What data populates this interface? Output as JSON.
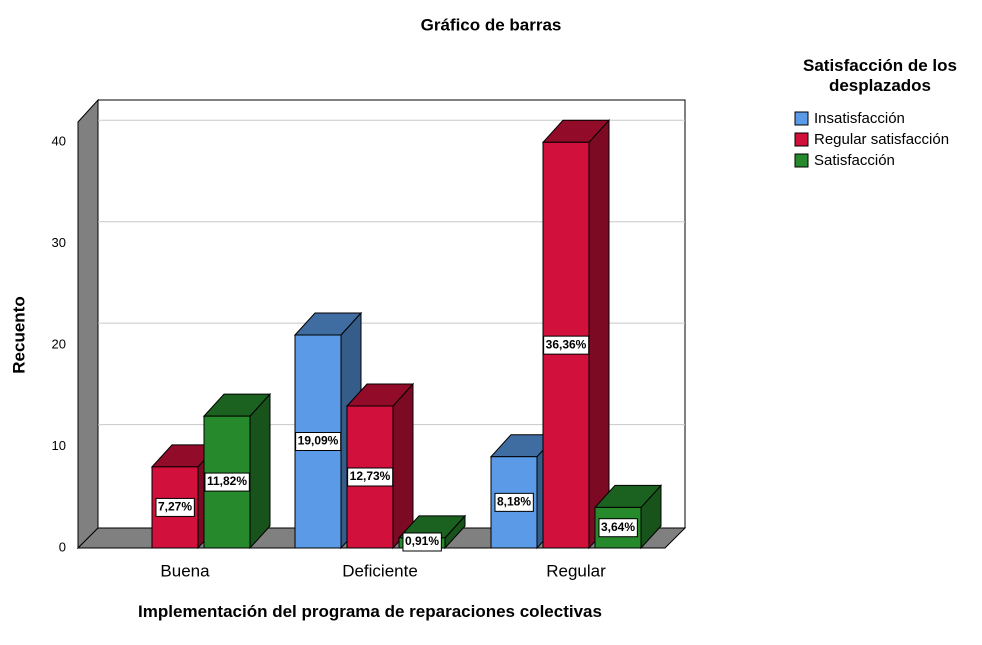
{
  "chart_data": {
    "type": "bar",
    "title": "Gráfico de barras",
    "x_label": "Implementación del programa de reparaciones colectivas",
    "y_label": "Recuento",
    "legend_title": "Satisfacción de los desplazados",
    "categories": [
      "Buena",
      "Deficiente",
      "Regular"
    ],
    "series": [
      {
        "name": "Insatisfacción",
        "color": "#5a9ae6",
        "values": [
          null,
          21,
          9
        ],
        "value_labels": [
          null,
          "19,09%",
          "8,18%"
        ]
      },
      {
        "name": "Regular satisfacción",
        "color": "#d1103b",
        "values": [
          8,
          14,
          40
        ],
        "value_labels": [
          "7,27%",
          "12,73%",
          "36,36%"
        ]
      },
      {
        "name": "Satisfacción",
        "color": "#268a2c",
        "values": [
          13,
          1,
          4
        ],
        "value_labels": [
          "11,82%",
          "0,91%",
          "3,64%"
        ]
      }
    ],
    "ylim": [
      0,
      42
    ],
    "yticks": [
      0,
      10,
      20,
      30,
      40
    ],
    "grid": true,
    "legend": "right"
  }
}
